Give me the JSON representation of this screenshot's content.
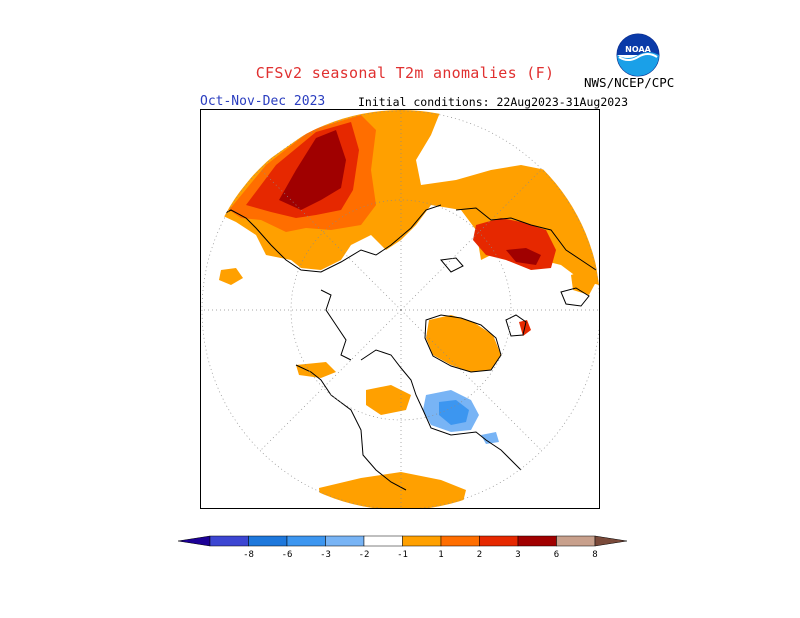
{
  "header": {
    "title": "CFSv2 seasonal T2m anomalies (F)",
    "period": "Oct-Nov-Dec 2023",
    "initial_conditions": "Initial conditions: 22Aug2023-31Aug2023",
    "agency": "NWS/NCEP/CPC",
    "logo_text": "NOAA"
  },
  "colorbar": {
    "labels": [
      "-8",
      "-6",
      "-3",
      "-2",
      "-1",
      "1",
      "2",
      "3",
      "6",
      "8"
    ],
    "colors": [
      "#1c0096",
      "#3c46d2",
      "#1e78dc",
      "#3c96f0",
      "#78b4f5",
      "#ffffff",
      "#ffa000",
      "#ff6e00",
      "#e62800",
      "#a00000",
      "#c8a08c",
      "#7a4a3a"
    ]
  },
  "map": {
    "projection": "north polar stereographic",
    "anomaly_colors": {
      "plus1": "#ffa000",
      "plus2": "#ff6e00",
      "plus3": "#e62800",
      "plus6": "#a00000",
      "minus1": "#78b4f5",
      "minus2": "#3c96f0"
    }
  }
}
